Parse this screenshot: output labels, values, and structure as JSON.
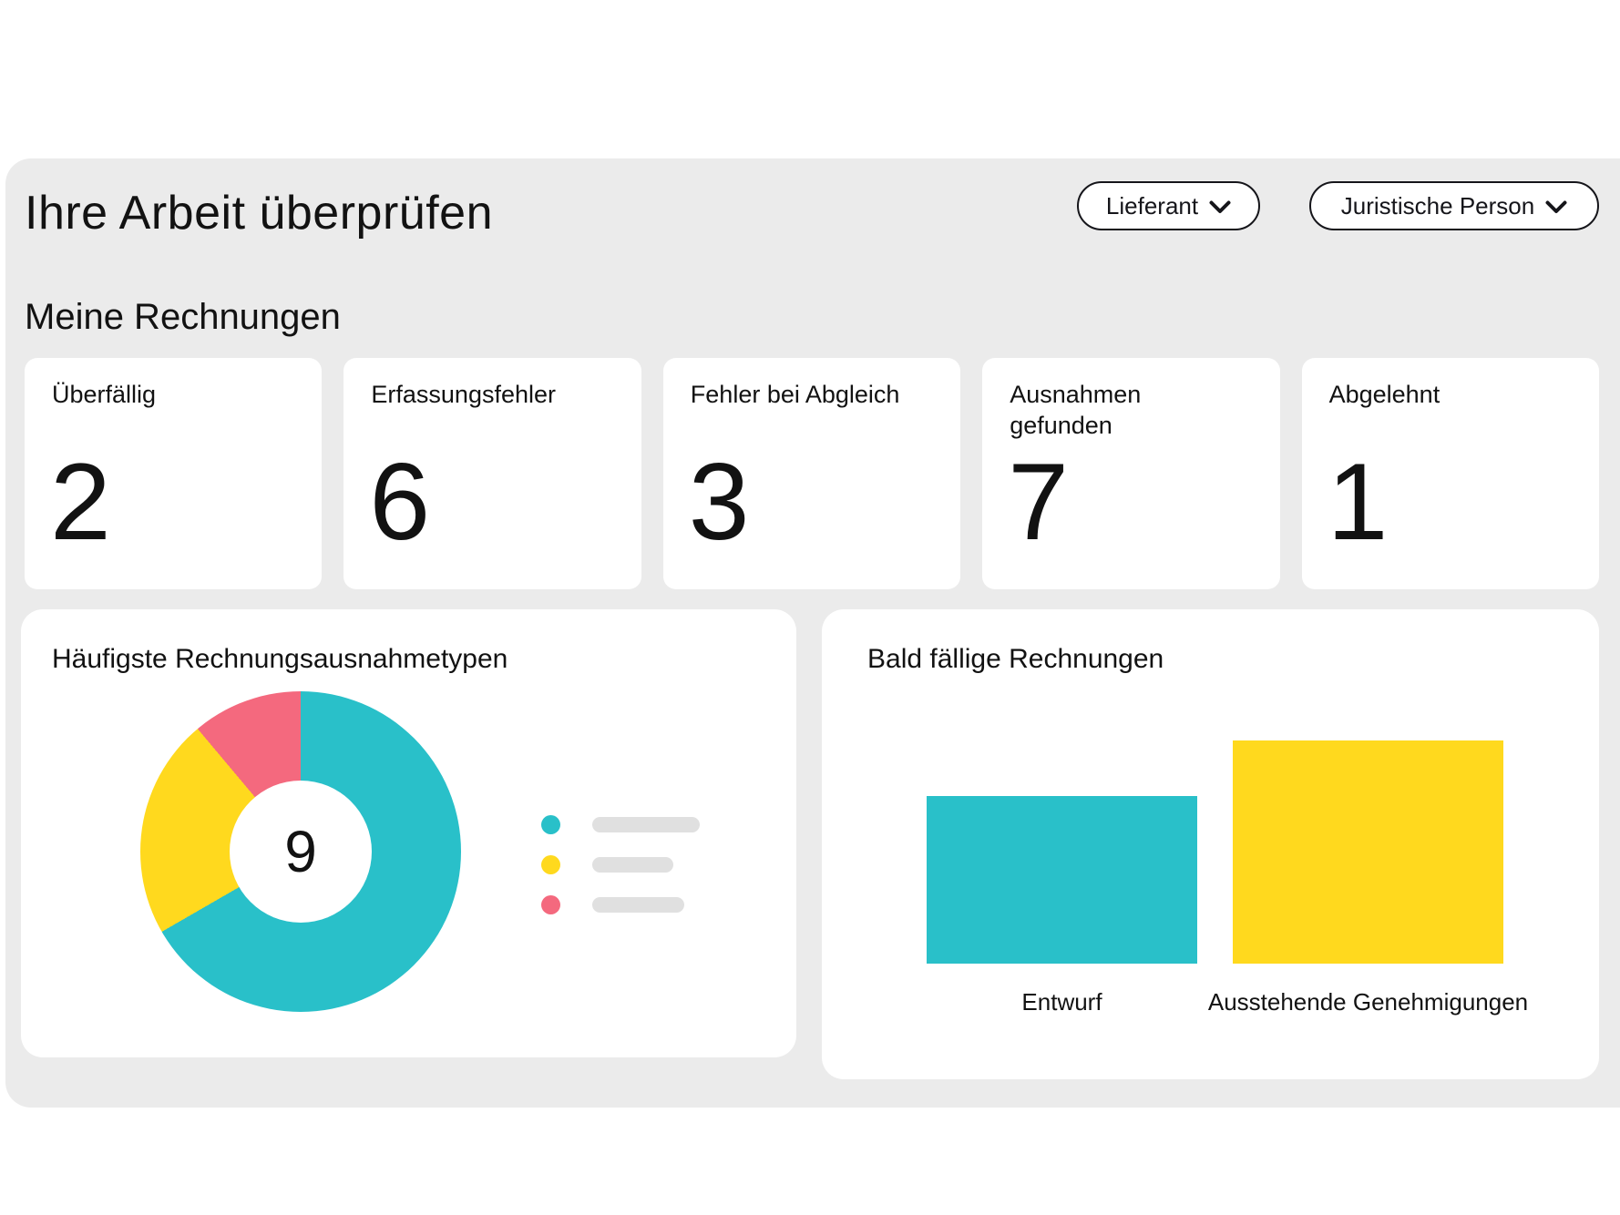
{
  "header": {
    "title": "Ihre Arbeit überprüfen",
    "filters": [
      {
        "label": "Lieferant"
      },
      {
        "label": "Juristische Person"
      }
    ]
  },
  "invoices_section": {
    "title": "Meine Rechnungen",
    "stat_cards": [
      {
        "label": "Überfällig",
        "value": "2"
      },
      {
        "label": "Erfassungsfehler",
        "value": "6"
      },
      {
        "label": "Fehler bei Abgleich",
        "value": "3"
      },
      {
        "label": "Ausnahmen gefunden",
        "value": "7"
      },
      {
        "label": "Abgelehnt",
        "value": "1"
      }
    ]
  },
  "exception_types_card": {
    "title": "Häufigste Rechnungsausnahmetypen"
  },
  "due_soon_card": {
    "title": "Bald fällige Rechnungen"
  },
  "chart_data": [
    {
      "type": "pie",
      "title": "Häufigste Rechnungsausnahmetypen",
      "style": "donut",
      "center_total": 9,
      "values": [
        6,
        2,
        1
      ],
      "labels": [
        "",
        "",
        ""
      ],
      "legend_labels_placeholder": true,
      "legend_position": "right",
      "colors": [
        "#29c0c9",
        "#ffd91e",
        "#f4697e"
      ]
    },
    {
      "type": "bar",
      "title": "Bald fällige Rechnungen",
      "categories": [
        "Entwurf",
        "Ausstehende Genehmigungen"
      ],
      "values": [
        3,
        4
      ],
      "colors": [
        "#29c0c9",
        "#ffd91e"
      ],
      "ylim": [
        0,
        4.4
      ],
      "grid": false,
      "axes_hidden": true
    }
  ],
  "colors": {
    "teal": "#29c0c9",
    "yellow": "#ffd91e",
    "pink": "#f4697e",
    "panel_bg": "#ebebeb",
    "card_bg": "#ffffff",
    "legend_placeholder": "#e0e0e0",
    "text": "#121212"
  }
}
